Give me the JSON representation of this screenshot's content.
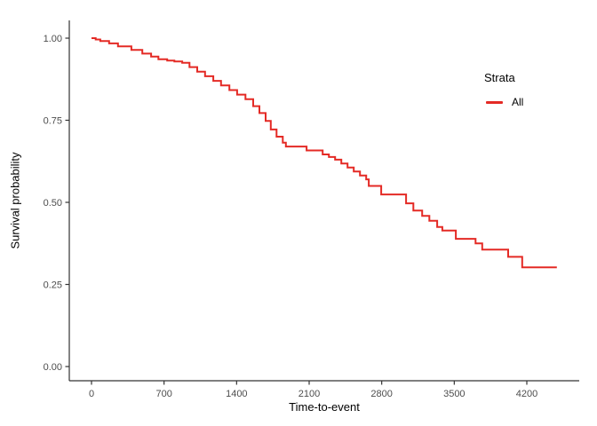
{
  "figure": {
    "background": "#ffffff",
    "y_axis_title": "Survival probability",
    "x_axis_title": "Time-to-event",
    "legend": {
      "title": "Strata",
      "items": [
        {
          "label": "All",
          "color": "#e42a25"
        }
      ]
    },
    "colors": {
      "axis_line": "#333333",
      "tick_text": "#4d4d4d",
      "title_text": "#000000",
      "curve": "#e42a25"
    }
  },
  "chart_data": {
    "type": "line",
    "subtype": "kaplan-meier-step-curve",
    "title": "",
    "xlabel": "Time-to-event",
    "ylabel": "Survival probability",
    "xlim": [
      0,
      4500
    ],
    "ylim": [
      0.0,
      1.0
    ],
    "xticks": [
      "0",
      "700",
      "1400",
      "2100",
      "2800",
      "3500",
      "4200"
    ],
    "xtick_values": [
      0,
      700,
      1400,
      2100,
      2800,
      3500,
      4200
    ],
    "yticks": [
      "0.00",
      "0.25",
      "0.50",
      "0.75",
      "1.00"
    ],
    "ytick_values": [
      0.0,
      0.25,
      0.5,
      0.75,
      1.0
    ],
    "grid": false,
    "legend_position": "right",
    "series": [
      {
        "name": "All",
        "color": "#e42a25",
        "step": true,
        "points": [
          [
            0,
            1.0
          ],
          [
            40,
            0.996
          ],
          [
            85,
            0.991
          ],
          [
            170,
            0.984
          ],
          [
            255,
            0.975
          ],
          [
            385,
            0.964
          ],
          [
            490,
            0.953
          ],
          [
            575,
            0.944
          ],
          [
            645,
            0.936
          ],
          [
            730,
            0.932
          ],
          [
            800,
            0.929
          ],
          [
            875,
            0.925
          ],
          [
            945,
            0.912
          ],
          [
            1020,
            0.898
          ],
          [
            1095,
            0.884
          ],
          [
            1175,
            0.87
          ],
          [
            1250,
            0.856
          ],
          [
            1330,
            0.842
          ],
          [
            1405,
            0.828
          ],
          [
            1485,
            0.814
          ],
          [
            1560,
            0.793
          ],
          [
            1620,
            0.772
          ],
          [
            1680,
            0.748
          ],
          [
            1730,
            0.722
          ],
          [
            1785,
            0.7
          ],
          [
            1845,
            0.682
          ],
          [
            1875,
            0.67
          ],
          [
            2075,
            0.658
          ],
          [
            2230,
            0.646
          ],
          [
            2290,
            0.638
          ],
          [
            2350,
            0.63
          ],
          [
            2410,
            0.618
          ],
          [
            2470,
            0.606
          ],
          [
            2530,
            0.594
          ],
          [
            2590,
            0.582
          ],
          [
            2650,
            0.57
          ],
          [
            2675,
            0.55
          ],
          [
            2795,
            0.524
          ],
          [
            3035,
            0.497
          ],
          [
            3105,
            0.475
          ],
          [
            3190,
            0.459
          ],
          [
            3260,
            0.444
          ],
          [
            3335,
            0.425
          ],
          [
            3385,
            0.414
          ],
          [
            3515,
            0.389
          ],
          [
            3705,
            0.375
          ],
          [
            3770,
            0.356
          ],
          [
            4020,
            0.334
          ],
          [
            4155,
            0.302
          ],
          [
            4490,
            0.302
          ]
        ]
      }
    ]
  }
}
